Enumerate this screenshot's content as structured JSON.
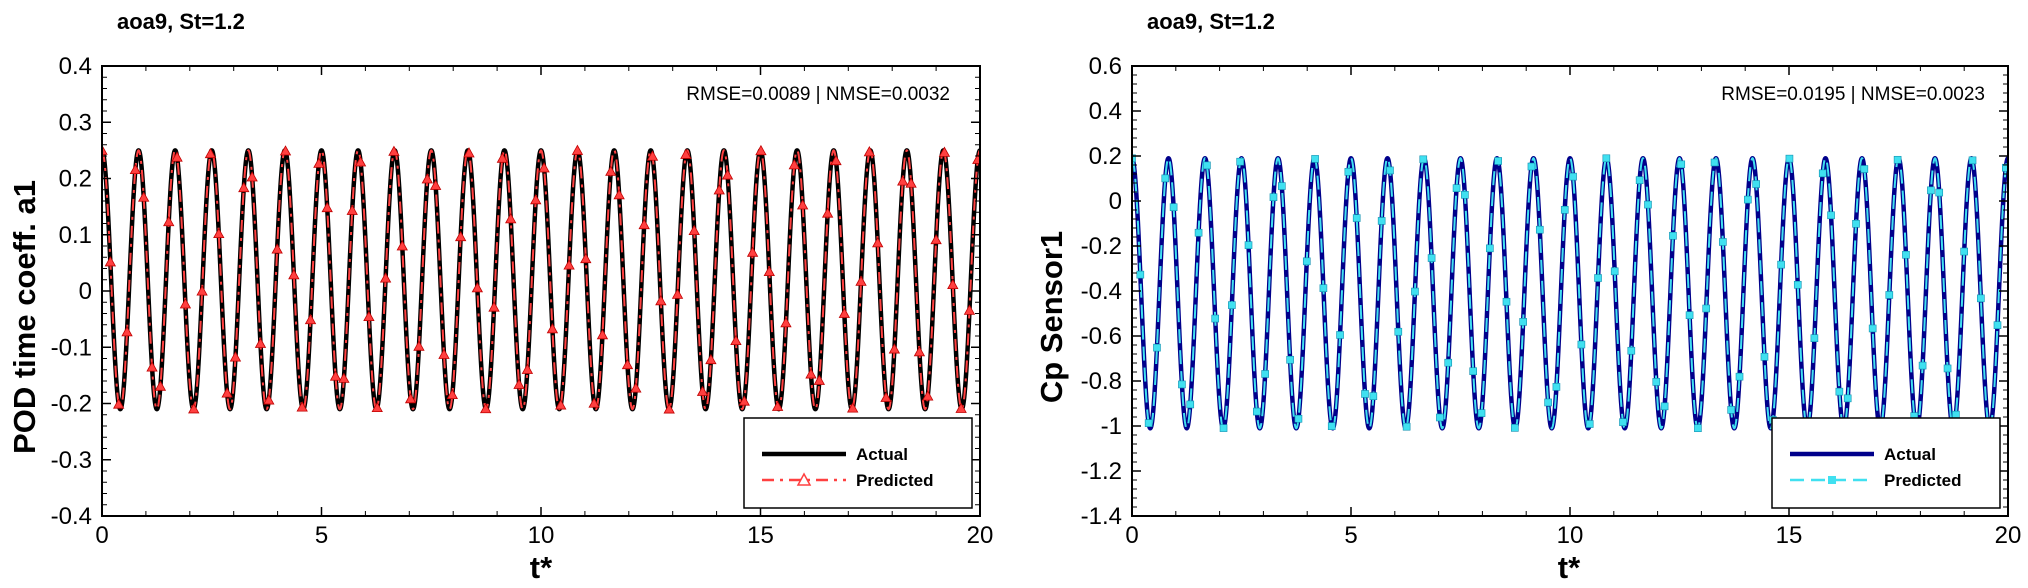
{
  "chart_data": [
    {
      "type": "line",
      "title": "aoa9, St=1.2",
      "xlabel": "t*",
      "ylabel": "POD time coeff. a1",
      "xlim": [
        0,
        20
      ],
      "ylim": [
        -0.4,
        0.4
      ],
      "xticks": [
        0,
        5,
        10,
        15,
        20
      ],
      "xtick_labels": [
        "0",
        "5",
        "10",
        "15",
        "20"
      ],
      "yticks": [
        -0.4,
        -0.3,
        -0.2,
        -0.1,
        0,
        0.1,
        0.2,
        0.3,
        0.4
      ],
      "ytick_labels": [
        "-0.4",
        "-0.3",
        "-0.2",
        "-0.1",
        "0",
        "0.1",
        "0.2",
        "0.3",
        "0.4"
      ],
      "annotation": "RMSE=0.0089 | NMSE=0.0032",
      "legend_position": "bottom-right",
      "signal": {
        "form": "sine",
        "t_start": 0,
        "t_end": 20,
        "cycles": 24,
        "offset": 0.02,
        "amplitude": 0.23,
        "phase_deg": 90,
        "marker_interval": 0.19
      },
      "series": [
        {
          "name": "Actual",
          "color": "#000000",
          "style": "solid",
          "marker": "none"
        },
        {
          "name": "Predicted",
          "color": "#ff4040",
          "style": "dash-dot",
          "marker": "triangle"
        }
      ]
    },
    {
      "type": "line",
      "title": "aoa9, St=1.2",
      "xlabel": "t*",
      "ylabel": "Cp Sensor1",
      "xlim": [
        0,
        20
      ],
      "ylim": [
        -1.4,
        0.6
      ],
      "xticks": [
        0,
        5,
        10,
        15,
        20
      ],
      "xtick_labels": [
        "0",
        "5",
        "10",
        "15",
        "20"
      ],
      "yticks": [
        -1.4,
        -1.2,
        -1,
        -0.8,
        -0.6,
        -0.4,
        -0.2,
        0,
        0.2,
        0.4,
        0.6
      ],
      "ytick_labels": [
        "-1.4",
        "-1.2",
        "-1",
        "-0.8",
        "-0.6",
        "-0.4",
        "-0.2",
        "0",
        "0.2",
        "0.4",
        "0.6"
      ],
      "annotation": "RMSE=0.0195 | NMSE=0.0023",
      "legend_position": "bottom-right",
      "signal": {
        "form": "sine",
        "t_start": 0,
        "t_end": 20,
        "cycles": 24,
        "offset": -0.41,
        "amplitude": 0.6,
        "phase_deg": 90,
        "marker_interval": 0.19
      },
      "series": [
        {
          "name": "Actual",
          "color": "#00008b",
          "style": "solid",
          "marker": "none"
        },
        {
          "name": "Predicted",
          "color": "#40e0f0",
          "style": "dashed",
          "marker": "square"
        }
      ]
    }
  ]
}
